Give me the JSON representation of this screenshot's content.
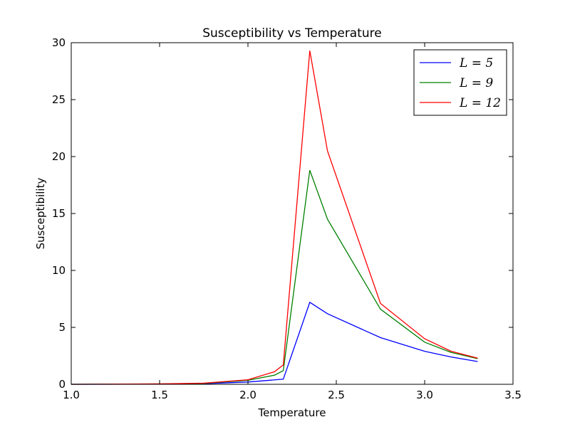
{
  "chart_data": {
    "type": "line",
    "title": "Susceptibility vs Temperature",
    "xlabel": "Temperature",
    "ylabel": "Susceptibility",
    "xlim": [
      1.0,
      3.5
    ],
    "ylim": [
      0,
      30
    ],
    "xticks": [
      1.0,
      1.5,
      2.0,
      2.5,
      3.0,
      3.5
    ],
    "xtick_labels": [
      "1.0",
      "1.5",
      "2.0",
      "2.5",
      "3.0",
      "3.5"
    ],
    "yticks": [
      0,
      5,
      10,
      15,
      20,
      25,
      30
    ],
    "ytick_labels": [
      "0",
      "5",
      "10",
      "15",
      "20",
      "25",
      "30"
    ],
    "grid": false,
    "legend_position": "top-right",
    "series": [
      {
        "name": "L = 5",
        "color": "#0000ff",
        "x": [
          1.0,
          1.5,
          1.75,
          2.0,
          2.2,
          2.35,
          2.45,
          2.75,
          3.0,
          3.15,
          3.3
        ],
        "y": [
          0.0,
          0.02,
          0.06,
          0.2,
          0.45,
          7.2,
          6.2,
          4.1,
          2.9,
          2.4,
          2.0
        ]
      },
      {
        "name": "L = 9",
        "color": "#008000",
        "x": [
          1.0,
          1.5,
          1.75,
          2.0,
          2.15,
          2.2,
          2.35,
          2.45,
          2.75,
          3.0,
          3.15,
          3.3
        ],
        "y": [
          0.0,
          0.03,
          0.08,
          0.35,
          0.8,
          1.2,
          18.8,
          14.5,
          6.6,
          3.7,
          2.8,
          2.25
        ]
      },
      {
        "name": "L = 12",
        "color": "#ff0000",
        "x": [
          1.0,
          1.5,
          1.75,
          2.0,
          2.15,
          2.2,
          2.35,
          2.45,
          2.75,
          3.0,
          3.15,
          3.3
        ],
        "y": [
          0.0,
          0.04,
          0.1,
          0.4,
          1.1,
          1.7,
          29.3,
          20.5,
          7.1,
          4.0,
          2.9,
          2.3
        ]
      }
    ]
  }
}
